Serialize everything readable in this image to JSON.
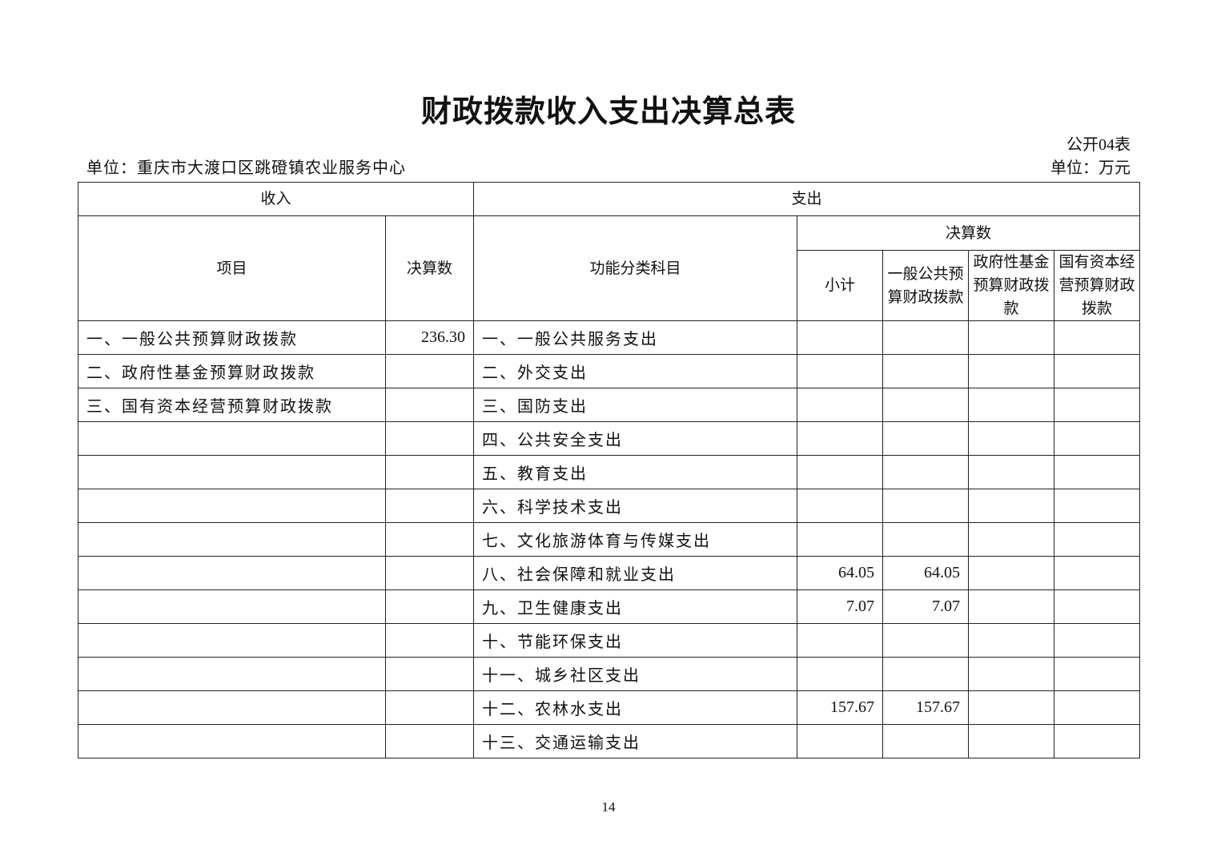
{
  "title": "财政拨款收入支出决算总表",
  "form_number": "公开04表",
  "unit_org": "单位：重庆市大渡口区跳磴镇农业服务中心",
  "unit_money": "单位：万元",
  "headers": {
    "income": "收入",
    "expense": "支出",
    "item": "项目",
    "income_amount": "决算数",
    "function_category": "功能分类科目",
    "expense_amount": "决算数",
    "subtotal": "小计",
    "general_public": "一般公共预算财政拨款",
    "gov_fund": "政府性基金预算财政拨款",
    "state_capital": "国有资本经营预算财政拨款"
  },
  "rows": [
    {
      "income_item": "一、一般公共预算财政拨款",
      "income_amount": "236.30",
      "expense_item": "一、一般公共服务支出",
      "subtotal": "",
      "general": "",
      "fund": "",
      "capital": ""
    },
    {
      "income_item": "二、政府性基金预算财政拨款",
      "income_amount": "",
      "expense_item": "二、外交支出",
      "subtotal": "",
      "general": "",
      "fund": "",
      "capital": ""
    },
    {
      "income_item": "三、国有资本经营预算财政拨款",
      "income_amount": "",
      "expense_item": "三、国防支出",
      "subtotal": "",
      "general": "",
      "fund": "",
      "capital": ""
    },
    {
      "income_item": "",
      "income_amount": "",
      "expense_item": "四、公共安全支出",
      "subtotal": "",
      "general": "",
      "fund": "",
      "capital": ""
    },
    {
      "income_item": "",
      "income_amount": "",
      "expense_item": "五、教育支出",
      "subtotal": "",
      "general": "",
      "fund": "",
      "capital": ""
    },
    {
      "income_item": "",
      "income_amount": "",
      "expense_item": "六、科学技术支出",
      "subtotal": "",
      "general": "",
      "fund": "",
      "capital": ""
    },
    {
      "income_item": "",
      "income_amount": "",
      "expense_item": "七、文化旅游体育与传媒支出",
      "subtotal": "",
      "general": "",
      "fund": "",
      "capital": ""
    },
    {
      "income_item": "",
      "income_amount": "",
      "expense_item": "八、社会保障和就业支出",
      "subtotal": "64.05",
      "general": "64.05",
      "fund": "",
      "capital": ""
    },
    {
      "income_item": "",
      "income_amount": "",
      "expense_item": "九、卫生健康支出",
      "subtotal": "7.07",
      "general": "7.07",
      "fund": "",
      "capital": ""
    },
    {
      "income_item": "",
      "income_amount": "",
      "expense_item": "十、节能环保支出",
      "subtotal": "",
      "general": "",
      "fund": "",
      "capital": ""
    },
    {
      "income_item": "",
      "income_amount": "",
      "expense_item": "十一、城乡社区支出",
      "subtotal": "",
      "general": "",
      "fund": "",
      "capital": ""
    },
    {
      "income_item": "",
      "income_amount": "",
      "expense_item": "十二、农林水支出",
      "subtotal": "157.67",
      "general": "157.67",
      "fund": "",
      "capital": ""
    },
    {
      "income_item": "",
      "income_amount": "",
      "expense_item": "十三、交通运输支出",
      "subtotal": "",
      "general": "",
      "fund": "",
      "capital": ""
    }
  ],
  "page_number": "14"
}
